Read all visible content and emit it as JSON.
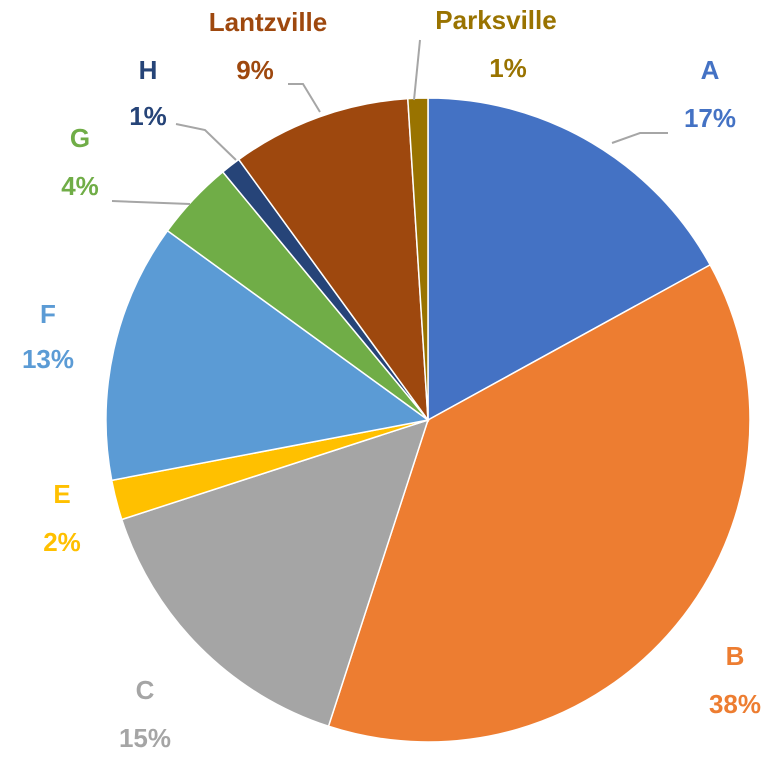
{
  "chart_data": {
    "type": "pie",
    "categories": [
      "A",
      "B",
      "C",
      "E",
      "F",
      "G",
      "H",
      "Lantzville",
      "Parksville"
    ],
    "values": [
      17,
      38,
      15,
      2,
      13,
      4,
      1,
      9,
      1
    ],
    "value_labels": [
      "17%",
      "38%",
      "15%",
      "2%",
      "13%",
      "4%",
      "1%",
      "9%",
      "1%"
    ],
    "colors": [
      "#4472c4",
      "#ed7d31",
      "#a5a5a5",
      "#ffc000",
      "#5b9bd5",
      "#70ad47",
      "#264478",
      "#9e480e",
      "#997300"
    ]
  }
}
